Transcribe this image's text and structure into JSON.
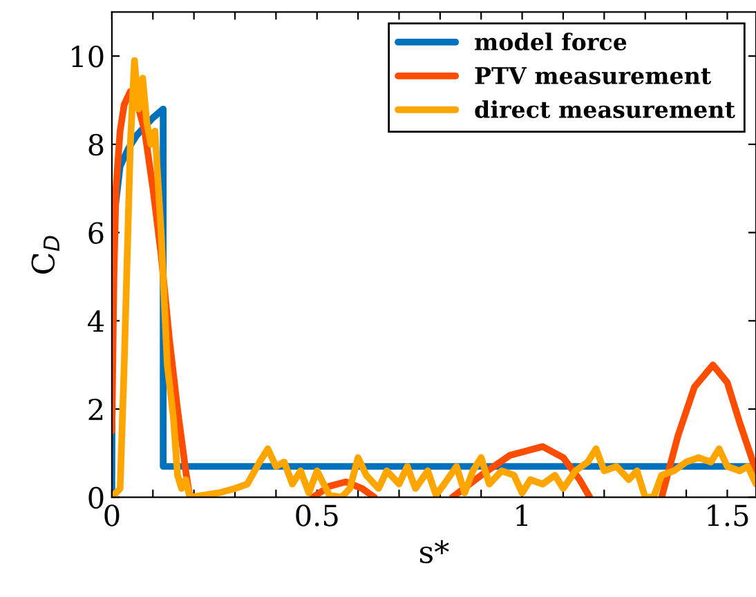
{
  "chart_data": {
    "type": "line",
    "xlabel": "s*",
    "ylabel": "C$_{D}$",
    "xlim": [
      0,
      1.57
    ],
    "ylim": [
      0,
      11
    ],
    "xticks": [
      0,
      {
        "value": 0.1,
        "label": null
      },
      {
        "value": 0.2,
        "label": null
      },
      {
        "value": 0.3,
        "label": null
      },
      {
        "value": 0.4,
        "label": null
      },
      0.5,
      {
        "value": 0.6,
        "label": null
      },
      {
        "value": 0.7,
        "label": null
      },
      {
        "value": 0.8,
        "label": null
      },
      {
        "value": 0.9,
        "label": null
      },
      1,
      {
        "value": 1.1,
        "label": null
      },
      {
        "value": 1.2,
        "label": null
      },
      {
        "value": 1.3,
        "label": null
      },
      {
        "value": 1.4,
        "label": null
      },
      1.5
    ],
    "yticks": [
      0,
      2,
      4,
      6,
      8,
      10
    ],
    "grid": false,
    "legend": "top right",
    "marker": "none",
    "line_style": "solid",
    "series": [
      {
        "name": "model force",
        "color": "#0072bd",
        "x": [
          0,
          0.001,
          0.02,
          0.04,
          0.06,
          0.08,
          0.1,
          0.125,
          0.125,
          0.13,
          1.57
        ],
        "values": [
          0.2,
          6.0,
          7.5,
          7.9,
          8.2,
          8.4,
          8.6,
          8.8,
          0.7,
          0.7,
          0.7
        ]
      },
      {
        "name": "PTV measurement",
        "color": "#ff4d00",
        "x": [
          0,
          0.005,
          0.01,
          0.02,
          0.03,
          0.045,
          0.06,
          0.08,
          0.1,
          0.12,
          0.14,
          0.16,
          0.18,
          0.19,
          0.3,
          0.49,
          0.53,
          0.57,
          0.61,
          0.64,
          0.75,
          0.83,
          0.9,
          0.97,
          1.05,
          1.1,
          1.14,
          1.165,
          1.25,
          1.34,
          1.38,
          1.42,
          1.465,
          1.5,
          1.53,
          1.57
        ],
        "values": [
          1.5,
          5,
          7,
          8.3,
          8.9,
          9.2,
          9.0,
          8.3,
          7,
          5.5,
          3.6,
          2,
          0.6,
          0,
          null,
          0,
          0.25,
          0.35,
          0.2,
          0,
          null,
          0,
          0.5,
          0.95,
          1.15,
          0.9,
          0.4,
          0,
          null,
          0,
          1.4,
          2.5,
          3.0,
          2.6,
          1.7,
          0.6
        ]
      },
      {
        "name": "direct measurement",
        "color": "#ffa500",
        "x": [
          0,
          0.02,
          0.03,
          0.045,
          0.055,
          0.065,
          0.075,
          0.085,
          0.095,
          0.105,
          0.12,
          0.135,
          0.15,
          0.16,
          0.17,
          0.18,
          0.19,
          0.26,
          0.3,
          0.33,
          0.36,
          0.38,
          0.4,
          0.42,
          0.44,
          0.46,
          0.48,
          0.5,
          0.53,
          0.56,
          0.58,
          0.6,
          0.62,
          0.65,
          0.67,
          0.7,
          0.72,
          0.74,
          0.77,
          0.79,
          0.81,
          0.84,
          0.86,
          0.88,
          0.9,
          0.92,
          0.95,
          0.98,
          1.0,
          1.02,
          1.05,
          1.08,
          1.1,
          1.13,
          1.16,
          1.18,
          1.2,
          1.23,
          1.26,
          1.28,
          1.3,
          1.32,
          1.34,
          1.37,
          1.4,
          1.43,
          1.46,
          1.48,
          1.5,
          1.53,
          1.55,
          1.57
        ],
        "values": [
          0,
          0.2,
          3,
          8,
          9.9,
          8.8,
          9.5,
          8.5,
          8,
          8.3,
          6,
          3,
          1.8,
          0.5,
          0.2,
          0.4,
          0,
          0.1,
          0.2,
          0.3,
          0.8,
          1.1,
          0.7,
          0.8,
          0.3,
          0.6,
          0.1,
          0.6,
          0.05,
          0,
          0.2,
          0.9,
          0.5,
          0.2,
          0.6,
          0.3,
          0.7,
          0.2,
          0.6,
          0.05,
          0.3,
          0.7,
          0.1,
          0.6,
          0.9,
          0.3,
          0.6,
          0.5,
          0.1,
          0.4,
          0.3,
          0.5,
          0.2,
          0.6,
          0.8,
          1.1,
          0.6,
          0.7,
          0.4,
          0.6,
          0,
          0,
          0.5,
          0.6,
          0.8,
          0.9,
          0.8,
          1.1,
          0.7,
          0.6,
          0.7,
          0.3
        ]
      }
    ]
  }
}
